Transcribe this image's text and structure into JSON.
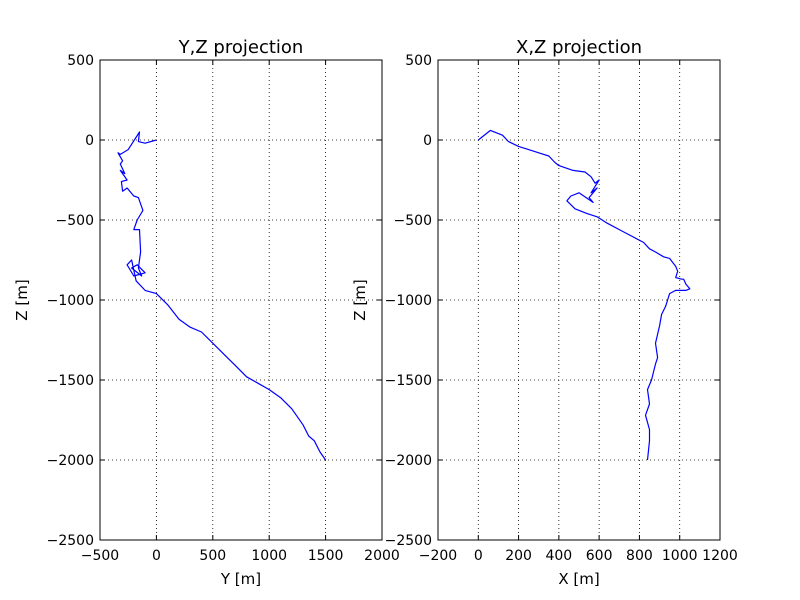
{
  "figure": {
    "background": "#ffffff",
    "line_color": "#0000ff",
    "grid_color": "#000000"
  },
  "chart_data": [
    {
      "type": "line",
      "title": "Y,Z projection",
      "xlabel": "Y [m]",
      "ylabel": "Z [m]",
      "xlim": [
        -500,
        2000
      ],
      "ylim": [
        -2500,
        500
      ],
      "xticks": [
        -500,
        0,
        500,
        1000,
        1500,
        2000
      ],
      "yticks": [
        500,
        0,
        -500,
        -1000,
        -1500,
        -2000,
        -2500
      ],
      "grid": true,
      "series": [
        {
          "color": "#0000ff",
          "x": [
            0,
            -100,
            -160,
            -150,
            -250,
            -320,
            -340,
            -300,
            -320,
            -280,
            -320,
            -260,
            -310,
            -300,
            -260,
            -200,
            -160,
            -120,
            -170,
            -200,
            -150,
            -140,
            -160,
            -130,
            -220,
            -170,
            -100,
            -200,
            -260,
            -220,
            -180,
            -100,
            0,
            100,
            200,
            300,
            400,
            500,
            600,
            700,
            800,
            900,
            1000,
            1100,
            1200,
            1300,
            1350,
            1400,
            1450,
            1500
          ],
          "y": [
            0,
            -20,
            -10,
            50,
            -60,
            -90,
            -80,
            -130,
            -150,
            -210,
            -190,
            -250,
            -260,
            -320,
            -300,
            -350,
            -360,
            -440,
            -500,
            -560,
            -560,
            -700,
            -800,
            -850,
            -800,
            -780,
            -830,
            -850,
            -780,
            -750,
            -880,
            -940,
            -960,
            -1030,
            -1120,
            -1170,
            -1200,
            -1270,
            -1340,
            -1410,
            -1480,
            -1520,
            -1560,
            -1610,
            -1680,
            -1780,
            -1850,
            -1880,
            -1950,
            -2000
          ]
        }
      ]
    },
    {
      "type": "line",
      "title": "X,Z projection",
      "xlabel": "X [m]",
      "ylabel": "Z [m]",
      "xlim": [
        -200,
        1200
      ],
      "ylim": [
        -2500,
        500
      ],
      "xticks": [
        -200,
        0,
        200,
        400,
        600,
        800,
        1000,
        1200
      ],
      "yticks": [
        500,
        0,
        -500,
        -1000,
        -1500,
        -2000,
        -2500
      ],
      "grid": true,
      "series": [
        {
          "color": "#0000ff",
          "x": [
            0,
            60,
            120,
            150,
            200,
            250,
            300,
            350,
            380,
            400,
            470,
            530,
            560,
            580,
            600,
            560,
            590,
            550,
            570,
            500,
            460,
            440,
            480,
            540,
            590,
            640,
            700,
            760,
            820,
            850,
            880,
            920,
            950,
            980,
            990,
            980,
            1010,
            1020,
            1030,
            1050,
            1030,
            980,
            950,
            940,
            930,
            910,
            900,
            880,
            890,
            880,
            870,
            860,
            840,
            850,
            830,
            850,
            850,
            840
          ],
          "y": [
            0,
            60,
            30,
            -10,
            -40,
            -60,
            -80,
            -100,
            -140,
            -160,
            -190,
            -200,
            -230,
            -270,
            -250,
            -330,
            -300,
            -360,
            -390,
            -330,
            -350,
            -380,
            -430,
            -460,
            -480,
            -520,
            -560,
            -600,
            -640,
            -680,
            -700,
            -730,
            -740,
            -790,
            -820,
            -860,
            -870,
            -870,
            -900,
            -930,
            -940,
            -940,
            -960,
            -1000,
            -1040,
            -1090,
            -1160,
            -1270,
            -1360,
            -1400,
            -1450,
            -1500,
            -1560,
            -1650,
            -1720,
            -1810,
            -1880,
            -2000
          ]
        }
      ]
    }
  ]
}
